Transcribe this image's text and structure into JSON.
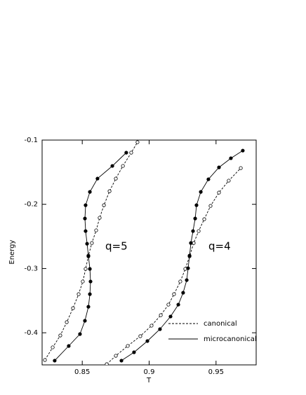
{
  "chart_data": {
    "type": "line",
    "x_label": "T",
    "y_label": "Energy",
    "xlim": [
      0.82,
      0.98
    ],
    "xticks": [
      0.85,
      0.9,
      0.95
    ],
    "ylim": [
      -0.45,
      -0.1
    ],
    "yticks": [
      -0.4,
      -0.3,
      -0.2,
      -0.1
    ],
    "annotations": [
      "q=5",
      "q=4"
    ],
    "series": [
      {
        "name": "canonical",
        "color": "#000000",
        "dashed": true,
        "marker": "open",
        "curves": [
          {
            "x": [
              0.8221,
              0.8279,
              0.8336,
              0.8384,
              0.8431,
              0.8473,
              0.8504,
              0.8525,
              0.8546,
              0.8572,
              0.8604,
              0.863,
              0.8662,
              0.8704,
              0.8751,
              0.8804,
              0.8866,
              0.8913
            ],
            "values": [
              -0.4424,
              -0.4227,
              -0.4042,
              -0.3835,
              -0.3617,
              -0.3399,
              -0.3202,
              -0.3006,
              -0.2799,
              -0.2603,
              -0.2406,
              -0.221,
              -0.2014,
              -0.1796,
              -0.16,
              -0.1403,
              -0.1196,
              -0.1033
            ]
          },
          {
            "x": [
              0.8683,
              0.8751,
              0.884,
              0.8934,
              0.9018,
              0.9087,
              0.9144,
              0.9186,
              0.9233,
              0.927,
              0.9302,
              0.9333,
              0.937,
              0.9412,
              0.9459,
              0.9522,
              0.9595,
              0.9685
            ],
            "values": [
              -0.4489,
              -0.4358,
              -0.4205,
              -0.4053,
              -0.3889,
              -0.3726,
              -0.3562,
              -0.3399,
              -0.3202,
              -0.3006,
              -0.281,
              -0.2603,
              -0.2417,
              -0.2232,
              -0.2025,
              -0.1818,
              -0.1632,
              -0.1436
            ]
          }
        ]
      },
      {
        "name": "microcanonical",
        "color": "#000000",
        "dashed": false,
        "marker": "filled",
        "curves": [
          {
            "x": [
              0.8294,
              0.8399,
              0.8483,
              0.852,
              0.8546,
              0.8557,
              0.8562,
              0.8557,
              0.8546,
              0.8536,
              0.8525,
              0.852,
              0.8525,
              0.8557,
              0.8614,
              0.8725,
              0.8829
            ],
            "values": [
              -0.4434,
              -0.4206,
              -0.402,
              -0.3813,
              -0.3595,
              -0.3399,
              -0.3202,
              -0.3006,
              -0.281,
              -0.2614,
              -0.2417,
              -0.2221,
              -0.2014,
              -0.1807,
              -0.16,
              -0.1403,
              -0.1196
            ]
          },
          {
            "x": [
              0.8793,
              0.8887,
              0.8987,
              0.9081,
              0.916,
              0.9218,
              0.9254,
              0.9281,
              0.9291,
              0.9302,
              0.9312,
              0.9328,
              0.9344,
              0.9354,
              0.9386,
              0.9443,
              0.9522,
              0.9611,
              0.97
            ],
            "values": [
              -0.4434,
              -0.4304,
              -0.4129,
              -0.3944,
              -0.3747,
              -0.3562,
              -0.3377,
              -0.318,
              -0.2995,
              -0.2799,
              -0.2603,
              -0.2417,
              -0.2221,
              -0.2014,
              -0.1807,
              -0.1611,
              -0.1425,
              -0.1283,
              -0.1164
            ]
          }
        ]
      }
    ]
  }
}
